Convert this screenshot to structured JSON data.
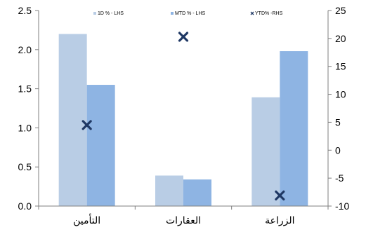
{
  "chart_data": {
    "type": "bar",
    "categories": [
      "التأمين",
      "العقارات",
      "الزراعة"
    ],
    "series": [
      {
        "name": "1D % - LHS",
        "type": "bar",
        "axis": "left",
        "values": [
          2.2,
          0.39,
          1.39
        ],
        "color": "#b9cde5"
      },
      {
        "name": "MTD % - LHS",
        "type": "bar",
        "axis": "left",
        "values": [
          1.55,
          0.34,
          1.98
        ],
        "color": "#8eb4e3"
      },
      {
        "name": "YTD% -RHS",
        "type": "scatter",
        "axis": "right",
        "marker": "x",
        "values": [
          4.5,
          20.3,
          -8.1
        ],
        "color": "#1f3864"
      }
    ],
    "y_left": {
      "ylim": [
        0,
        2.5
      ],
      "ticks": [
        "0.0",
        "0.5",
        "1.0",
        "1.5",
        "2.0",
        "2.5"
      ]
    },
    "y_right": {
      "ylim": [
        -10,
        25
      ],
      "ticks": [
        "-10",
        "-5",
        "0",
        "5",
        "10",
        "15",
        "20",
        "25"
      ]
    },
    "legend": "top-center",
    "grid": false
  }
}
